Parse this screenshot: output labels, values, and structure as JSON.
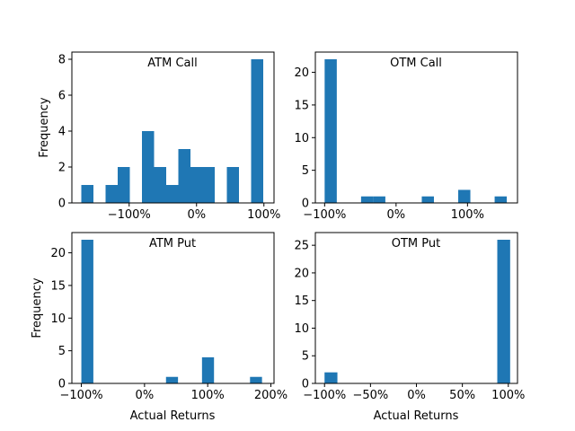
{
  "colors": {
    "bar": "#1f77b4",
    "axis": "#000000",
    "background": "#ffffff"
  },
  "chart_data": [
    {
      "type": "bar",
      "title": "ATM Call",
      "xlabel": "",
      "ylabel": "Frequency",
      "xlim": [
        -185,
        115
      ],
      "ylim": [
        0,
        8.4
      ],
      "xticks": [
        -100,
        0,
        100
      ],
      "xtick_labels": [
        "−100%",
        "0%",
        "100%"
      ],
      "yticks": [
        0,
        2,
        4,
        6,
        8
      ],
      "ytick_labels": [
        "0",
        "2",
        "4",
        "6",
        "8"
      ],
      "bins": [
        {
          "x0": -171,
          "x1": -153,
          "count": 1
        },
        {
          "x0": -135,
          "x1": -117,
          "count": 1
        },
        {
          "x0": -117,
          "x1": -99,
          "count": 2
        },
        {
          "x0": -81,
          "x1": -63,
          "count": 4
        },
        {
          "x0": -63,
          "x1": -45,
          "count": 2
        },
        {
          "x0": -45,
          "x1": -27,
          "count": 1
        },
        {
          "x0": -27,
          "x1": -9,
          "count": 3
        },
        {
          "x0": -9,
          "x1": 9,
          "count": 2
        },
        {
          "x0": 9,
          "x1": 27,
          "count": 2
        },
        {
          "x0": 45,
          "x1": 63,
          "count": 2
        },
        {
          "x0": 81,
          "x1": 99,
          "count": 8
        }
      ]
    },
    {
      "type": "bar",
      "title": "OTM Call",
      "xlabel": "",
      "ylabel": "",
      "xlim": [
        -113,
        170
      ],
      "ylim": [
        0,
        23.1
      ],
      "xticks": [
        -100,
        0,
        100
      ],
      "xtick_labels": [
        "−100%",
        "0%",
        "100%"
      ],
      "yticks": [
        0,
        5,
        10,
        15,
        20
      ],
      "ytick_labels": [
        "0",
        "5",
        "10",
        "15",
        "20"
      ],
      "bins": [
        {
          "x0": -100,
          "x1": -83,
          "count": 22
        },
        {
          "x0": -49,
          "x1": -32,
          "count": 1
        },
        {
          "x0": -32,
          "x1": -15,
          "count": 1
        },
        {
          "x0": 36,
          "x1": 53,
          "count": 1
        },
        {
          "x0": 87,
          "x1": 104,
          "count": 2
        },
        {
          "x0": 138,
          "x1": 155,
          "count": 1
        }
      ]
    },
    {
      "type": "bar",
      "title": "ATM Put",
      "xlabel": "Actual Returns",
      "ylabel": "Frequency",
      "xlim": [
        -115,
        205
      ],
      "ylim": [
        0,
        23.1
      ],
      "xticks": [
        -100,
        0,
        100,
        200
      ],
      "xtick_labels": [
        "−100%",
        "0%",
        "100%",
        "200%"
      ],
      "yticks": [
        0,
        5,
        10,
        15,
        20
      ],
      "ytick_labels": [
        "0",
        "5",
        "10",
        "15",
        "20"
      ],
      "bins": [
        {
          "x0": -100,
          "x1": -81,
          "count": 22
        },
        {
          "x0": 34,
          "x1": 53,
          "count": 1
        },
        {
          "x0": 91,
          "x1": 110,
          "count": 4
        },
        {
          "x0": 167,
          "x1": 186,
          "count": 1
        }
      ]
    },
    {
      "type": "bar",
      "title": "OTM Put",
      "xlabel": "Actual Returns",
      "ylabel": "",
      "xlim": [
        -110,
        110
      ],
      "ylim": [
        0,
        27.3
      ],
      "xticks": [
        -100,
        -50,
        0,
        50,
        100
      ],
      "xtick_labels": [
        "−100%",
        "−50%",
        "0%",
        "50%",
        "100%"
      ],
      "yticks": [
        0,
        5,
        10,
        15,
        20,
        25
      ],
      "ytick_labels": [
        "0",
        "5",
        "10",
        "15",
        "20",
        "25"
      ],
      "bins": [
        {
          "x0": -100,
          "x1": -86,
          "count": 2
        },
        {
          "x0": 88,
          "x1": 102,
          "count": 26
        }
      ]
    }
  ]
}
